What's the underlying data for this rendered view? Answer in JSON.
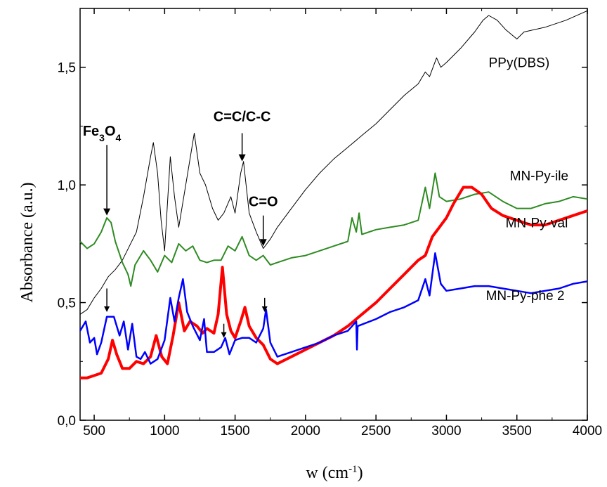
{
  "chart_data": {
    "type": "line",
    "xlabel": "w (cm",
    "xlabel_sup": "-1",
    "xlabel_close": ")",
    "ylabel": "Absorbance (a.u.)",
    "xlim": [
      400,
      4000
    ],
    "ylim": [
      0.0,
      1.75
    ],
    "x_ticks": [
      500,
      1000,
      1500,
      2000,
      2500,
      3000,
      3500,
      4000
    ],
    "x_tick_labels": [
      "500",
      "1000",
      "1500",
      "2000",
      "2500",
      "3000",
      "3500",
      "4000"
    ],
    "y_ticks": [
      0.0,
      0.5,
      1.0,
      1.5
    ],
    "y_tick_labels": [
      "0,0",
      "0,5",
      "1,0",
      "1,5"
    ],
    "grid": false,
    "series": [
      {
        "name": "PPy(DBS)",
        "color": "#000000",
        "points": [
          [
            400,
            0.45
          ],
          [
            450,
            0.47
          ],
          [
            500,
            0.52
          ],
          [
            550,
            0.56
          ],
          [
            600,
            0.61
          ],
          [
            650,
            0.64
          ],
          [
            700,
            0.68
          ],
          [
            750,
            0.74
          ],
          [
            800,
            0.8
          ],
          [
            850,
            0.95
          ],
          [
            900,
            1.12
          ],
          [
            920,
            1.18
          ],
          [
            950,
            1.05
          ],
          [
            975,
            0.85
          ],
          [
            1000,
            0.72
          ],
          [
            1040,
            1.12
          ],
          [
            1070,
            0.95
          ],
          [
            1100,
            0.82
          ],
          [
            1150,
            1.0
          ],
          [
            1210,
            1.22
          ],
          [
            1250,
            1.05
          ],
          [
            1290,
            1.0
          ],
          [
            1340,
            0.9
          ],
          [
            1380,
            0.85
          ],
          [
            1420,
            0.88
          ],
          [
            1470,
            0.95
          ],
          [
            1500,
            0.88
          ],
          [
            1540,
            1.05
          ],
          [
            1560,
            1.1
          ],
          [
            1600,
            0.88
          ],
          [
            1650,
            0.8
          ],
          [
            1700,
            0.73
          ],
          [
            1750,
            0.77
          ],
          [
            1800,
            0.82
          ],
          [
            1900,
            0.9
          ],
          [
            2000,
            0.98
          ],
          [
            2100,
            1.05
          ],
          [
            2200,
            1.11
          ],
          [
            2300,
            1.16
          ],
          [
            2400,
            1.21
          ],
          [
            2500,
            1.26
          ],
          [
            2600,
            1.32
          ],
          [
            2700,
            1.38
          ],
          [
            2800,
            1.43
          ],
          [
            2850,
            1.48
          ],
          [
            2880,
            1.46
          ],
          [
            2930,
            1.54
          ],
          [
            2960,
            1.5
          ],
          [
            3000,
            1.52
          ],
          [
            3100,
            1.58
          ],
          [
            3200,
            1.65
          ],
          [
            3260,
            1.7
          ],
          [
            3300,
            1.72
          ],
          [
            3360,
            1.7
          ],
          [
            3420,
            1.66
          ],
          [
            3500,
            1.62
          ],
          [
            3550,
            1.65
          ],
          [
            3700,
            1.67
          ],
          [
            3850,
            1.7
          ],
          [
            4000,
            1.74
          ]
        ]
      },
      {
        "name": "MN-Py-ile",
        "color": "#2e8b22",
        "points": [
          [
            400,
            0.76
          ],
          [
            450,
            0.73
          ],
          [
            500,
            0.75
          ],
          [
            550,
            0.8
          ],
          [
            590,
            0.86
          ],
          [
            620,
            0.84
          ],
          [
            650,
            0.76
          ],
          [
            700,
            0.67
          ],
          [
            740,
            0.62
          ],
          [
            760,
            0.57
          ],
          [
            790,
            0.66
          ],
          [
            850,
            0.72
          ],
          [
            900,
            0.68
          ],
          [
            950,
            0.63
          ],
          [
            1000,
            0.7
          ],
          [
            1050,
            0.67
          ],
          [
            1100,
            0.75
          ],
          [
            1150,
            0.72
          ],
          [
            1200,
            0.74
          ],
          [
            1250,
            0.68
          ],
          [
            1300,
            0.67
          ],
          [
            1350,
            0.68
          ],
          [
            1400,
            0.68
          ],
          [
            1450,
            0.74
          ],
          [
            1500,
            0.72
          ],
          [
            1550,
            0.78
          ],
          [
            1600,
            0.7
          ],
          [
            1650,
            0.68
          ],
          [
            1700,
            0.7
          ],
          [
            1750,
            0.66
          ],
          [
            1800,
            0.67
          ],
          [
            1900,
            0.69
          ],
          [
            2000,
            0.7
          ],
          [
            2100,
            0.72
          ],
          [
            2200,
            0.74
          ],
          [
            2300,
            0.76
          ],
          [
            2330,
            0.86
          ],
          [
            2360,
            0.8
          ],
          [
            2380,
            0.88
          ],
          [
            2400,
            0.79
          ],
          [
            2500,
            0.81
          ],
          [
            2600,
            0.82
          ],
          [
            2700,
            0.83
          ],
          [
            2800,
            0.85
          ],
          [
            2850,
            0.99
          ],
          [
            2880,
            0.9
          ],
          [
            2920,
            1.05
          ],
          [
            2950,
            0.95
          ],
          [
            3000,
            0.93
          ],
          [
            3100,
            0.94
          ],
          [
            3200,
            0.96
          ],
          [
            3300,
            0.97
          ],
          [
            3400,
            0.93
          ],
          [
            3500,
            0.9
          ],
          [
            3600,
            0.9
          ],
          [
            3700,
            0.92
          ],
          [
            3800,
            0.93
          ],
          [
            3900,
            0.95
          ],
          [
            4000,
            0.94
          ]
        ]
      },
      {
        "name": "MN-Py-val",
        "color": "#ff0000",
        "points": [
          [
            400,
            0.18
          ],
          [
            450,
            0.18
          ],
          [
            500,
            0.19
          ],
          [
            550,
            0.2
          ],
          [
            600,
            0.26
          ],
          [
            630,
            0.34
          ],
          [
            660,
            0.28
          ],
          [
            700,
            0.22
          ],
          [
            750,
            0.22
          ],
          [
            800,
            0.25
          ],
          [
            850,
            0.24
          ],
          [
            900,
            0.27
          ],
          [
            940,
            0.36
          ],
          [
            980,
            0.27
          ],
          [
            1020,
            0.24
          ],
          [
            1060,
            0.36
          ],
          [
            1100,
            0.5
          ],
          [
            1140,
            0.38
          ],
          [
            1180,
            0.42
          ],
          [
            1230,
            0.4
          ],
          [
            1270,
            0.37
          ],
          [
            1300,
            0.39
          ],
          [
            1350,
            0.37
          ],
          [
            1380,
            0.45
          ],
          [
            1410,
            0.65
          ],
          [
            1440,
            0.45
          ],
          [
            1470,
            0.38
          ],
          [
            1500,
            0.35
          ],
          [
            1540,
            0.42
          ],
          [
            1570,
            0.48
          ],
          [
            1600,
            0.4
          ],
          [
            1650,
            0.35
          ],
          [
            1700,
            0.32
          ],
          [
            1750,
            0.26
          ],
          [
            1800,
            0.24
          ],
          [
            1900,
            0.27
          ],
          [
            2000,
            0.3
          ],
          [
            2100,
            0.33
          ],
          [
            2200,
            0.36
          ],
          [
            2300,
            0.4
          ],
          [
            2360,
            0.43
          ],
          [
            2400,
            0.45
          ],
          [
            2500,
            0.5
          ],
          [
            2600,
            0.56
          ],
          [
            2700,
            0.62
          ],
          [
            2800,
            0.68
          ],
          [
            2850,
            0.7
          ],
          [
            2900,
            0.78
          ],
          [
            2950,
            0.82
          ],
          [
            3000,
            0.86
          ],
          [
            3050,
            0.92
          ],
          [
            3120,
            0.99
          ],
          [
            3180,
            0.99
          ],
          [
            3250,
            0.96
          ],
          [
            3320,
            0.9
          ],
          [
            3400,
            0.87
          ],
          [
            3500,
            0.85
          ],
          [
            3600,
            0.83
          ],
          [
            3700,
            0.83
          ],
          [
            3800,
            0.85
          ],
          [
            3900,
            0.87
          ],
          [
            4000,
            0.89
          ]
        ]
      },
      {
        "name": "MN-Py-phe 2",
        "color": "#0000ff",
        "points": [
          [
            400,
            0.38
          ],
          [
            440,
            0.42
          ],
          [
            470,
            0.33
          ],
          [
            500,
            0.35
          ],
          [
            520,
            0.28
          ],
          [
            550,
            0.33
          ],
          [
            590,
            0.44
          ],
          [
            640,
            0.44
          ],
          [
            680,
            0.36
          ],
          [
            710,
            0.42
          ],
          [
            740,
            0.3
          ],
          [
            770,
            0.41
          ],
          [
            800,
            0.27
          ],
          [
            830,
            0.26
          ],
          [
            860,
            0.29
          ],
          [
            900,
            0.24
          ],
          [
            950,
            0.26
          ],
          [
            1000,
            0.34
          ],
          [
            1040,
            0.52
          ],
          [
            1070,
            0.42
          ],
          [
            1100,
            0.52
          ],
          [
            1130,
            0.6
          ],
          [
            1160,
            0.46
          ],
          [
            1200,
            0.4
          ],
          [
            1250,
            0.34
          ],
          [
            1280,
            0.43
          ],
          [
            1300,
            0.29
          ],
          [
            1350,
            0.29
          ],
          [
            1400,
            0.31
          ],
          [
            1430,
            0.35
          ],
          [
            1460,
            0.28
          ],
          [
            1500,
            0.34
          ],
          [
            1550,
            0.35
          ],
          [
            1600,
            0.35
          ],
          [
            1650,
            0.33
          ],
          [
            1700,
            0.39
          ],
          [
            1720,
            0.47
          ],
          [
            1750,
            0.33
          ],
          [
            1800,
            0.27
          ],
          [
            1900,
            0.29
          ],
          [
            2000,
            0.31
          ],
          [
            2100,
            0.33
          ],
          [
            2200,
            0.36
          ],
          [
            2300,
            0.38
          ],
          [
            2360,
            0.42
          ],
          [
            2365,
            0.3
          ],
          [
            2370,
            0.4
          ],
          [
            2500,
            0.43
          ],
          [
            2600,
            0.46
          ],
          [
            2700,
            0.48
          ],
          [
            2800,
            0.51
          ],
          [
            2850,
            0.6
          ],
          [
            2880,
            0.53
          ],
          [
            2920,
            0.71
          ],
          [
            2960,
            0.58
          ],
          [
            3000,
            0.55
          ],
          [
            3100,
            0.56
          ],
          [
            3200,
            0.57
          ],
          [
            3300,
            0.57
          ],
          [
            3400,
            0.56
          ],
          [
            3500,
            0.55
          ],
          [
            3600,
            0.54
          ],
          [
            3700,
            0.55
          ],
          [
            3800,
            0.56
          ],
          [
            3900,
            0.58
          ],
          [
            4000,
            0.59
          ]
        ]
      }
    ],
    "series_labels": [
      {
        "text": "PPy(DBS)",
        "x": 3300,
        "y": 1.5
      },
      {
        "text": "MN-Py-ile",
        "x": 3450,
        "y": 1.02
      },
      {
        "text": "MN-Py-val",
        "x": 3420,
        "y": 0.82
      },
      {
        "text": "MN-Py-phe 2",
        "x": 3280,
        "y": 0.51
      }
    ],
    "annotations": [
      {
        "text": "Fe",
        "sub1": "3",
        "mid": "O",
        "sub2": "4",
        "x": 555,
        "y": 1.21,
        "arrow_from": 1.17,
        "arrow_to": 0.87
      },
      {
        "text": "C=C/C-C",
        "x": 1550,
        "y": 1.27,
        "arrow_from": 1.22,
        "arrow_to": 1.1
      },
      {
        "text": "C=O",
        "x": 1700,
        "y": 0.91,
        "arrow_from": 0.87,
        "arrow_to": 0.74
      }
    ],
    "small_arrows": [
      {
        "x": 590,
        "from": 0.56,
        "to": 0.46
      },
      {
        "x": 1710,
        "from": 0.52,
        "to": 0.46
      },
      {
        "x": 1420,
        "from": 0.41,
        "to": 0.35
      }
    ]
  }
}
